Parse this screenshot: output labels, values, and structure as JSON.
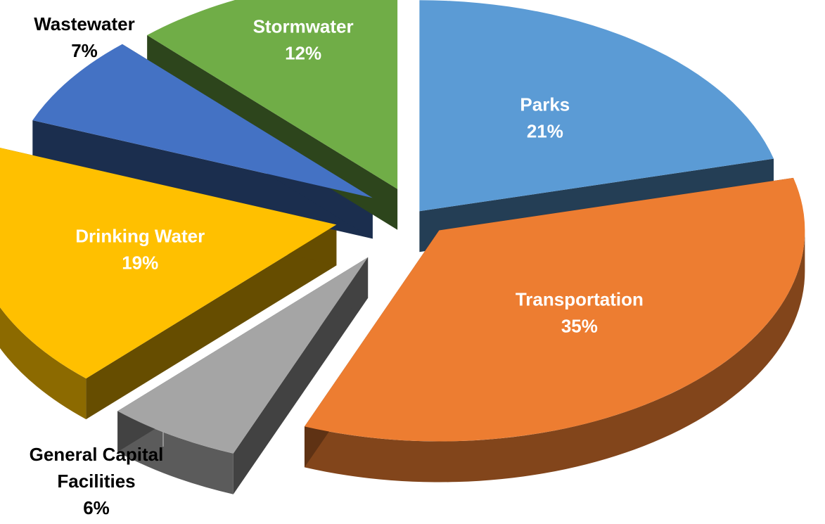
{
  "chart_data": {
    "type": "pie",
    "style": "3d-exploded",
    "title": "",
    "slices": [
      {
        "label": "Parks",
        "value": 21,
        "value_label": "21%",
        "color": "#5b9bd5",
        "label_color": "#ffffff"
      },
      {
        "label": "Transportation",
        "value": 35,
        "value_label": "35%",
        "color": "#ed7d31",
        "label_color": "#ffffff"
      },
      {
        "label": "General Capital Facilities",
        "value": 6,
        "value_label": "6%",
        "color": "#a5a5a5",
        "label_color": "#000000"
      },
      {
        "label": "Drinking Water",
        "value": 19,
        "value_label": "19%",
        "color": "#ffc000",
        "label_color": "#ffffff"
      },
      {
        "label": "Wastewater",
        "value": 7,
        "value_label": "7%",
        "color": "#4472c4",
        "label_color": "#000000"
      },
      {
        "label": "Stormwater",
        "value": 12,
        "value_label": "12%",
        "color": "#70ad47",
        "label_color": "#ffffff"
      }
    ],
    "legend": "none"
  }
}
